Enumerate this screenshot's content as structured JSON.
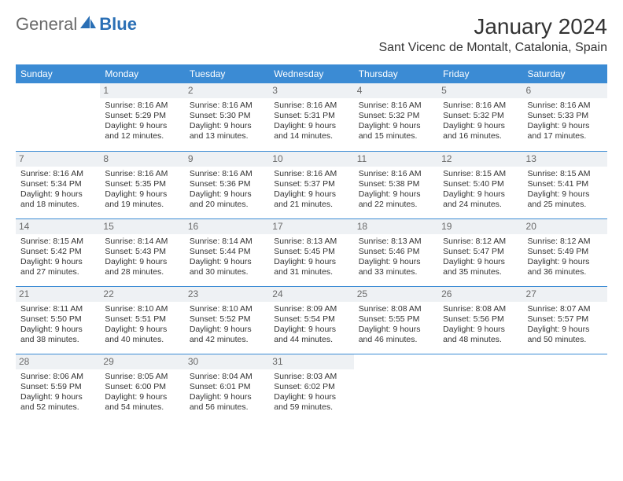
{
  "logo": {
    "general": "General",
    "blue": "Blue"
  },
  "title": "January 2024",
  "location": "Sant Vicenc de Montalt, Catalonia, Spain",
  "daysOfWeek": [
    "Sunday",
    "Monday",
    "Tuesday",
    "Wednesday",
    "Thursday",
    "Friday",
    "Saturday"
  ],
  "colors": {
    "headerBg": "#3b8bd4",
    "headerText": "#ffffff",
    "dayNumBg": "#eef1f4",
    "dayNumText": "#6a6a6a",
    "border": "#3b8bd4",
    "bodyText": "#333333"
  },
  "weeks": [
    [
      {
        "num": "",
        "lines": []
      },
      {
        "num": "1",
        "lines": [
          "Sunrise: 8:16 AM",
          "Sunset: 5:29 PM",
          "Daylight: 9 hours and 12 minutes."
        ]
      },
      {
        "num": "2",
        "lines": [
          "Sunrise: 8:16 AM",
          "Sunset: 5:30 PM",
          "Daylight: 9 hours and 13 minutes."
        ]
      },
      {
        "num": "3",
        "lines": [
          "Sunrise: 8:16 AM",
          "Sunset: 5:31 PM",
          "Daylight: 9 hours and 14 minutes."
        ]
      },
      {
        "num": "4",
        "lines": [
          "Sunrise: 8:16 AM",
          "Sunset: 5:32 PM",
          "Daylight: 9 hours and 15 minutes."
        ]
      },
      {
        "num": "5",
        "lines": [
          "Sunrise: 8:16 AM",
          "Sunset: 5:32 PM",
          "Daylight: 9 hours and 16 minutes."
        ]
      },
      {
        "num": "6",
        "lines": [
          "Sunrise: 8:16 AM",
          "Sunset: 5:33 PM",
          "Daylight: 9 hours and 17 minutes."
        ]
      }
    ],
    [
      {
        "num": "7",
        "lines": [
          "Sunrise: 8:16 AM",
          "Sunset: 5:34 PM",
          "Daylight: 9 hours and 18 minutes."
        ]
      },
      {
        "num": "8",
        "lines": [
          "Sunrise: 8:16 AM",
          "Sunset: 5:35 PM",
          "Daylight: 9 hours and 19 minutes."
        ]
      },
      {
        "num": "9",
        "lines": [
          "Sunrise: 8:16 AM",
          "Sunset: 5:36 PM",
          "Daylight: 9 hours and 20 minutes."
        ]
      },
      {
        "num": "10",
        "lines": [
          "Sunrise: 8:16 AM",
          "Sunset: 5:37 PM",
          "Daylight: 9 hours and 21 minutes."
        ]
      },
      {
        "num": "11",
        "lines": [
          "Sunrise: 8:16 AM",
          "Sunset: 5:38 PM",
          "Daylight: 9 hours and 22 minutes."
        ]
      },
      {
        "num": "12",
        "lines": [
          "Sunrise: 8:15 AM",
          "Sunset: 5:40 PM",
          "Daylight: 9 hours and 24 minutes."
        ]
      },
      {
        "num": "13",
        "lines": [
          "Sunrise: 8:15 AM",
          "Sunset: 5:41 PM",
          "Daylight: 9 hours and 25 minutes."
        ]
      }
    ],
    [
      {
        "num": "14",
        "lines": [
          "Sunrise: 8:15 AM",
          "Sunset: 5:42 PM",
          "Daylight: 9 hours and 27 minutes."
        ]
      },
      {
        "num": "15",
        "lines": [
          "Sunrise: 8:14 AM",
          "Sunset: 5:43 PM",
          "Daylight: 9 hours and 28 minutes."
        ]
      },
      {
        "num": "16",
        "lines": [
          "Sunrise: 8:14 AM",
          "Sunset: 5:44 PM",
          "Daylight: 9 hours and 30 minutes."
        ]
      },
      {
        "num": "17",
        "lines": [
          "Sunrise: 8:13 AM",
          "Sunset: 5:45 PM",
          "Daylight: 9 hours and 31 minutes."
        ]
      },
      {
        "num": "18",
        "lines": [
          "Sunrise: 8:13 AM",
          "Sunset: 5:46 PM",
          "Daylight: 9 hours and 33 minutes."
        ]
      },
      {
        "num": "19",
        "lines": [
          "Sunrise: 8:12 AM",
          "Sunset: 5:47 PM",
          "Daylight: 9 hours and 35 minutes."
        ]
      },
      {
        "num": "20",
        "lines": [
          "Sunrise: 8:12 AM",
          "Sunset: 5:49 PM",
          "Daylight: 9 hours and 36 minutes."
        ]
      }
    ],
    [
      {
        "num": "21",
        "lines": [
          "Sunrise: 8:11 AM",
          "Sunset: 5:50 PM",
          "Daylight: 9 hours and 38 minutes."
        ]
      },
      {
        "num": "22",
        "lines": [
          "Sunrise: 8:10 AM",
          "Sunset: 5:51 PM",
          "Daylight: 9 hours and 40 minutes."
        ]
      },
      {
        "num": "23",
        "lines": [
          "Sunrise: 8:10 AM",
          "Sunset: 5:52 PM",
          "Daylight: 9 hours and 42 minutes."
        ]
      },
      {
        "num": "24",
        "lines": [
          "Sunrise: 8:09 AM",
          "Sunset: 5:54 PM",
          "Daylight: 9 hours and 44 minutes."
        ]
      },
      {
        "num": "25",
        "lines": [
          "Sunrise: 8:08 AM",
          "Sunset: 5:55 PM",
          "Daylight: 9 hours and 46 minutes."
        ]
      },
      {
        "num": "26",
        "lines": [
          "Sunrise: 8:08 AM",
          "Sunset: 5:56 PM",
          "Daylight: 9 hours and 48 minutes."
        ]
      },
      {
        "num": "27",
        "lines": [
          "Sunrise: 8:07 AM",
          "Sunset: 5:57 PM",
          "Daylight: 9 hours and 50 minutes."
        ]
      }
    ],
    [
      {
        "num": "28",
        "lines": [
          "Sunrise: 8:06 AM",
          "Sunset: 5:59 PM",
          "Daylight: 9 hours and 52 minutes."
        ]
      },
      {
        "num": "29",
        "lines": [
          "Sunrise: 8:05 AM",
          "Sunset: 6:00 PM",
          "Daylight: 9 hours and 54 minutes."
        ]
      },
      {
        "num": "30",
        "lines": [
          "Sunrise: 8:04 AM",
          "Sunset: 6:01 PM",
          "Daylight: 9 hours and 56 minutes."
        ]
      },
      {
        "num": "31",
        "lines": [
          "Sunrise: 8:03 AM",
          "Sunset: 6:02 PM",
          "Daylight: 9 hours and 59 minutes."
        ]
      },
      {
        "num": "",
        "lines": []
      },
      {
        "num": "",
        "lines": []
      },
      {
        "num": "",
        "lines": []
      }
    ]
  ]
}
